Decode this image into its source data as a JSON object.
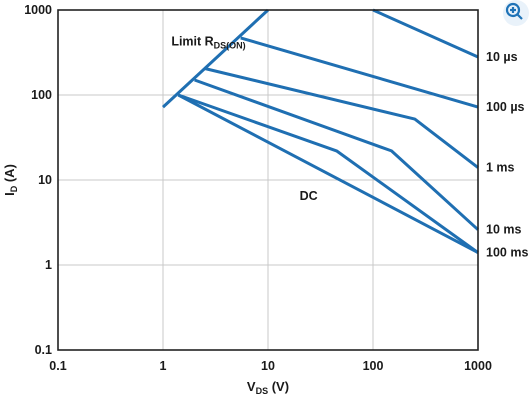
{
  "controls": {
    "zoom_icon": "zoom-in-magnifier-icon",
    "zoom_color": "#1f73b7"
  },
  "chart_data": {
    "type": "line",
    "title": "",
    "xlabel": {
      "main": "V",
      "sub": "DS",
      "unit": " (V)"
    },
    "ylabel": {
      "main": "I",
      "sub": "D",
      "unit": " (A)"
    },
    "x_scale": "log",
    "y_scale": "log",
    "xlim": [
      0.1,
      1000
    ],
    "ylim": [
      0.1,
      1000
    ],
    "xticks": [
      {
        "value": 0.1,
        "label": "0.1"
      },
      {
        "value": 1,
        "label": "1"
      },
      {
        "value": 10,
        "label": "10"
      },
      {
        "value": 100,
        "label": "100"
      },
      {
        "value": 1000,
        "label": "1000"
      }
    ],
    "yticks": [
      {
        "value": 0.1,
        "label": "0.1"
      },
      {
        "value": 1,
        "label": "1"
      },
      {
        "value": 10,
        "label": "10"
      },
      {
        "value": 100,
        "label": "100"
      },
      {
        "value": 1000,
        "label": "1000"
      }
    ],
    "grid": true,
    "line_color": "#1f6fb2",
    "annotation": {
      "main": "Limit R",
      "sub": "DS(ON)",
      "x": 1.2,
      "y": 380
    },
    "series": [
      {
        "name": "Limit R_DS(ON)",
        "points": [
          [
            1,
            72
          ],
          [
            10,
            1000
          ]
        ]
      },
      {
        "name": "10 µs",
        "points": [
          [
            100,
            1000
          ],
          [
            1000,
            280
          ]
        ]
      },
      {
        "name": "100 µs",
        "points": [
          [
            5.5,
            470
          ],
          [
            1000,
            72
          ]
        ]
      },
      {
        "name": "1 ms",
        "points": [
          [
            2.5,
            205
          ],
          [
            250,
            52
          ],
          [
            1000,
            14
          ]
        ]
      },
      {
        "name": "10 ms",
        "points": [
          [
            2,
            150
          ],
          [
            150,
            22
          ],
          [
            1000,
            2.6
          ]
        ]
      },
      {
        "name": "100 ms",
        "points": [
          [
            1.4,
            100
          ],
          [
            45,
            22
          ],
          [
            1000,
            1.4
          ]
        ]
      },
      {
        "name": "DC",
        "points": [
          [
            1.4,
            100
          ],
          [
            1000,
            1.4
          ]
        ]
      }
    ],
    "right_labels": [
      {
        "text": "10 µs",
        "y": 280
      },
      {
        "text": "100 µs",
        "y": 72
      },
      {
        "text": "1 ms",
        "y": 14
      },
      {
        "text": "10 ms",
        "y": 2.6
      },
      {
        "text": "100 ms",
        "y": 1.4
      }
    ],
    "inline_labels": [
      {
        "text": "DC",
        "x": 20,
        "y": 6.5
      }
    ]
  }
}
